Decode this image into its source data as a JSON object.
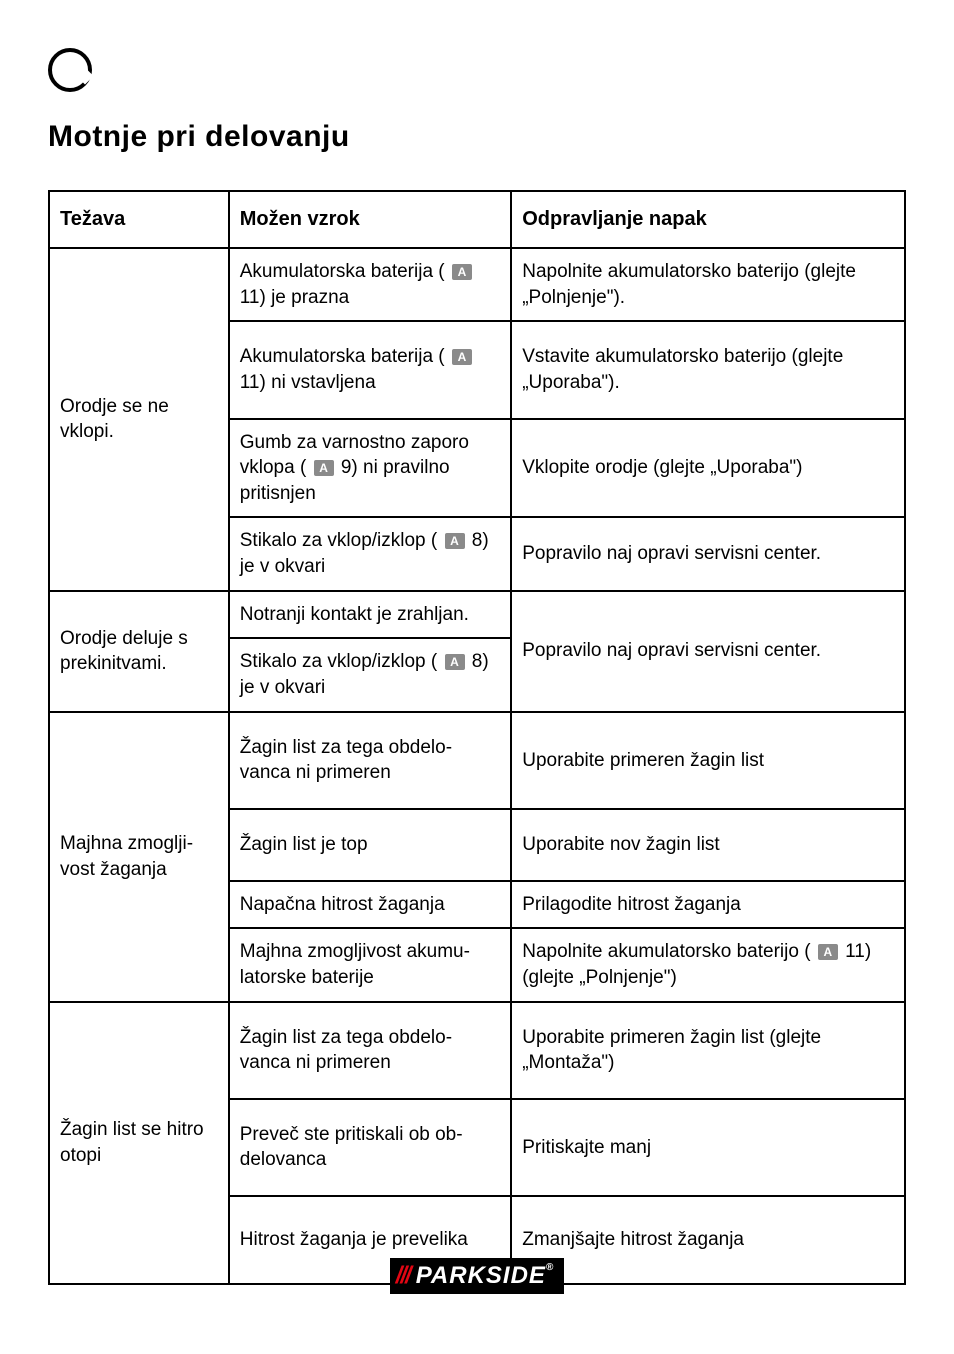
{
  "title": "Motnje pri delovanju",
  "ref_label": "A",
  "headers": {
    "problem": "Težava",
    "cause": "Možen vzrok",
    "remedy": "Odpravljanje napak"
  },
  "rows": [
    {
      "problem": "Orodje se ne vklopi.",
      "problem_rowspan": 4,
      "cells": [
        {
          "cause_pre": "Akumulatorska baterija ( ",
          "cause_ref": "11",
          "cause_post": ") je prazna",
          "remedy": "Napolnite akumulatorsko baterijo (glejte „Polnjenje\")."
        },
        {
          "cause_pre": "Akumulatorska baterija ( ",
          "cause_ref": "11",
          "cause_post": ") ni vstavljena",
          "remedy": "Vstavite akumulatorsko baterijo (glejte „Uporaba\").",
          "tall": true
        },
        {
          "cause_pre": "Gumb za varnostno zaporo vklopa ( ",
          "cause_ref": "9",
          "cause_post": ") ni pravilno pritisnjen",
          "remedy": "Vklopite orodje (glejte „Uporaba\")"
        },
        {
          "cause_pre": "Stikalo za vklop/izklop ( ",
          "cause_ref": "8",
          "cause_post": ") je v okvari",
          "remedy": "Popravilo naj opravi servisni center."
        }
      ]
    },
    {
      "problem": "Orodje deluje s prekinitvami.",
      "problem_rowspan": 2,
      "cells": [
        {
          "cause_plain": "Notranji kontakt je zrahljan.",
          "remedy": "Popravilo naj opravi servisni center.",
          "remedy_rowspan": 2
        },
        {
          "cause_pre": "Stikalo za vklop/izklop ( ",
          "cause_ref": "8",
          "cause_post": ") je v okvari"
        }
      ]
    },
    {
      "problem": "Majhna zmoglji-vost žaganja",
      "problem_rowspan": 4,
      "cells": [
        {
          "cause_plain": "Žagin list za tega obdelo-vanca ni primeren",
          "remedy": "Uporabite primeren žagin list",
          "tall": true
        },
        {
          "cause_plain": "Žagin list je top",
          "remedy": "Uporabite nov žagin list",
          "tall": true
        },
        {
          "cause_plain": "Napačna hitrost žaganja",
          "remedy": "Prilagodite hitrost žaganja"
        },
        {
          "cause_plain": "Majhna zmogljivost akumu-latorske baterije",
          "remedy_pre": "Napolnite akumulatorsko baterijo ( ",
          "remedy_ref": "11",
          "remedy_post": ") (glejte „Polnjenje\")"
        }
      ]
    },
    {
      "problem": "Žagin list se hitro otopi",
      "problem_rowspan": 3,
      "cells": [
        {
          "cause_plain": "Žagin list za tega obdelo-vanca ni primeren",
          "remedy": "Uporabite primeren žagin list (glejte „Montaža\")",
          "tall": true
        },
        {
          "cause_plain": "Preveč ste pritiskali ob ob-delovanca",
          "remedy": "Pritiskajte manj",
          "tall": true
        },
        {
          "cause_plain": "Hitrost žaganja je prevelika",
          "remedy": "Zmanjšajte hitrost žaganja",
          "xt": true
        }
      ]
    }
  ],
  "logo": {
    "bars": "///",
    "text": "PARKSIDE",
    "reg": "®"
  }
}
